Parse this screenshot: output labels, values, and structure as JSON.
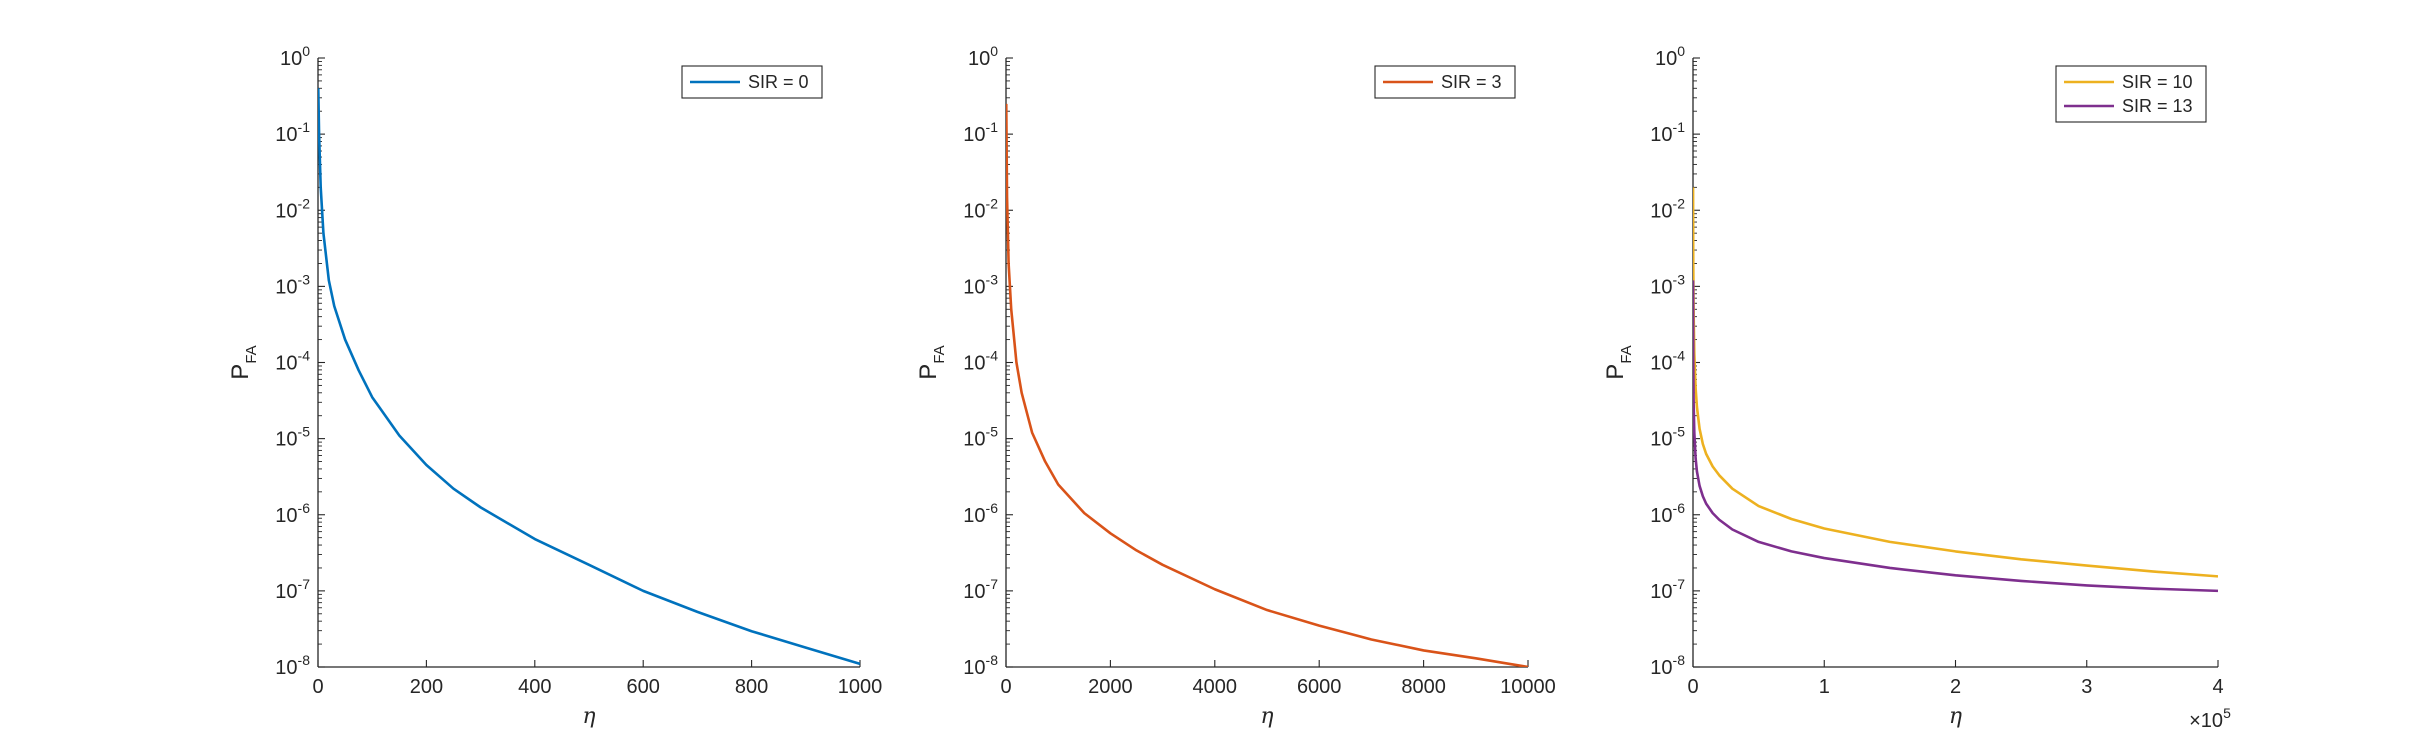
{
  "chart_data": [
    {
      "type": "line",
      "xlabel": "η",
      "ylabel": "P",
      "ylabel_sub": "FA",
      "xlim": [
        0,
        1000
      ],
      "ylim": [
        1e-08,
        1
      ],
      "yscale": "log",
      "grid": false,
      "legend_position": "top-right",
      "x_ticks": [
        "0",
        "200",
        "400",
        "600",
        "800",
        "1000"
      ],
      "x_exponent": "",
      "y_ticks": [
        {
          "base": "10",
          "exp": "0"
        },
        {
          "base": "10",
          "exp": "-1"
        },
        {
          "base": "10",
          "exp": "-2"
        },
        {
          "base": "10",
          "exp": "-3"
        },
        {
          "base": "10",
          "exp": "-4"
        },
        {
          "base": "10",
          "exp": "-5"
        },
        {
          "base": "10",
          "exp": "-6"
        },
        {
          "base": "10",
          "exp": "-7"
        },
        {
          "base": "10",
          "exp": "-8"
        }
      ],
      "series": [
        {
          "name": "SIR = 0",
          "color": "#0072BD",
          "x": [
            0.5,
            2,
            5,
            10,
            20,
            30,
            50,
            75,
            100,
            150,
            200,
            250,
            300,
            400,
            500,
            600,
            700,
            800,
            900,
            1000
          ],
          "y": [
            0.4,
            0.1,
            0.02,
            0.005,
            0.0012,
            0.00055,
            0.0002,
            7.9e-05,
            3.5e-05,
            1.1e-05,
            4.5e-06,
            2.2e-06,
            1.25e-06,
            4.8e-07,
            2.2e-07,
            1e-07,
            5.3e-08,
            2.95e-08,
            1.8e-08,
            1.1e-08
          ]
        }
      ]
    },
    {
      "type": "line",
      "xlabel": "η",
      "ylabel": "P",
      "ylabel_sub": "FA",
      "xlim": [
        0,
        10000
      ],
      "ylim": [
        1e-08,
        1
      ],
      "yscale": "log",
      "grid": false,
      "legend_position": "top-right",
      "x_ticks": [
        "0",
        "2000",
        "4000",
        "6000",
        "8000",
        "10000"
      ],
      "x_exponent": "",
      "y_ticks": [
        {
          "base": "10",
          "exp": "0"
        },
        {
          "base": "10",
          "exp": "-1"
        },
        {
          "base": "10",
          "exp": "-2"
        },
        {
          "base": "10",
          "exp": "-3"
        },
        {
          "base": "10",
          "exp": "-4"
        },
        {
          "base": "10",
          "exp": "-5"
        },
        {
          "base": "10",
          "exp": "-6"
        },
        {
          "base": "10",
          "exp": "-7"
        },
        {
          "base": "10",
          "exp": "-8"
        }
      ],
      "series": [
        {
          "name": "SIR = 3",
          "color": "#D95319",
          "x": [
            5,
            20,
            50,
            100,
            200,
            300,
            500,
            750,
            1000,
            1500,
            2000,
            2500,
            3000,
            4000,
            5000,
            6000,
            7000,
            8000,
            9000,
            10000
          ],
          "y": [
            0.25,
            0.015,
            0.002,
            0.0005,
            0.0001,
            4e-05,
            1.2e-05,
            5e-06,
            2.5e-06,
            1.05e-06,
            5.7e-07,
            3.4e-07,
            2.2e-07,
            1.05e-07,
            5.6e-08,
            3.5e-08,
            2.3e-08,
            1.65e-08,
            1.3e-08,
            1e-08
          ]
        }
      ]
    },
    {
      "type": "line",
      "xlabel": "η",
      "ylabel": "P",
      "ylabel_sub": "FA",
      "xlim": [
        0,
        400000
      ],
      "ylim": [
        1e-08,
        1
      ],
      "yscale": "log",
      "grid": false,
      "legend_position": "top-right",
      "x_ticks": [
        "0",
        "1",
        "2",
        "3",
        "4"
      ],
      "x_exponent": "×10",
      "x_exponent_power": "5",
      "y_ticks": [
        {
          "base": "10",
          "exp": "0"
        },
        {
          "base": "10",
          "exp": "-1"
        },
        {
          "base": "10",
          "exp": "-2"
        },
        {
          "base": "10",
          "exp": "-3"
        },
        {
          "base": "10",
          "exp": "-4"
        },
        {
          "base": "10",
          "exp": "-5"
        },
        {
          "base": "10",
          "exp": "-6"
        },
        {
          "base": "10",
          "exp": "-7"
        },
        {
          "base": "10",
          "exp": "-8"
        }
      ],
      "series": [
        {
          "name": "SIR = 10",
          "color": "#EDB120",
          "x": [
            50,
            200,
            500,
            1000,
            2000,
            3000,
            5000,
            7500,
            10000,
            15000,
            20000,
            30000,
            50000,
            75000,
            100000,
            150000,
            200000,
            250000,
            300000,
            350000,
            400000
          ],
          "y": [
            0.02,
            0.002,
            0.00043,
            0.00013,
            4.6e-05,
            2.6e-05,
            1.35e-05,
            8.5e-06,
            6.3e-06,
            4.3e-06,
            3.3e-06,
            2.2e-06,
            1.3e-06,
            8.8e-07,
            6.6e-07,
            4.4e-07,
            3.3e-07,
            2.6e-07,
            2.15e-07,
            1.8e-07,
            1.55e-07
          ]
        },
        {
          "name": "SIR = 13",
          "color": "#7E2F8E",
          "x": [
            50,
            200,
            500,
            1000,
            2000,
            3000,
            5000,
            7500,
            10000,
            15000,
            20000,
            30000,
            50000,
            75000,
            100000,
            150000,
            200000,
            250000,
            300000,
            350000,
            400000
          ],
          "y": [
            0.0012,
            0.0001,
            2.8e-05,
            1.2e-05,
            5.5e-06,
            3.7e-06,
            2.4e-06,
            1.75e-06,
            1.4e-06,
            1.05e-06,
            8.6e-07,
            6.4e-07,
            4.4e-07,
            3.3e-07,
            2.7e-07,
            2e-07,
            1.6e-07,
            1.35e-07,
            1.18e-07,
            1.07e-07,
            1e-07
          ]
        }
      ]
    }
  ]
}
